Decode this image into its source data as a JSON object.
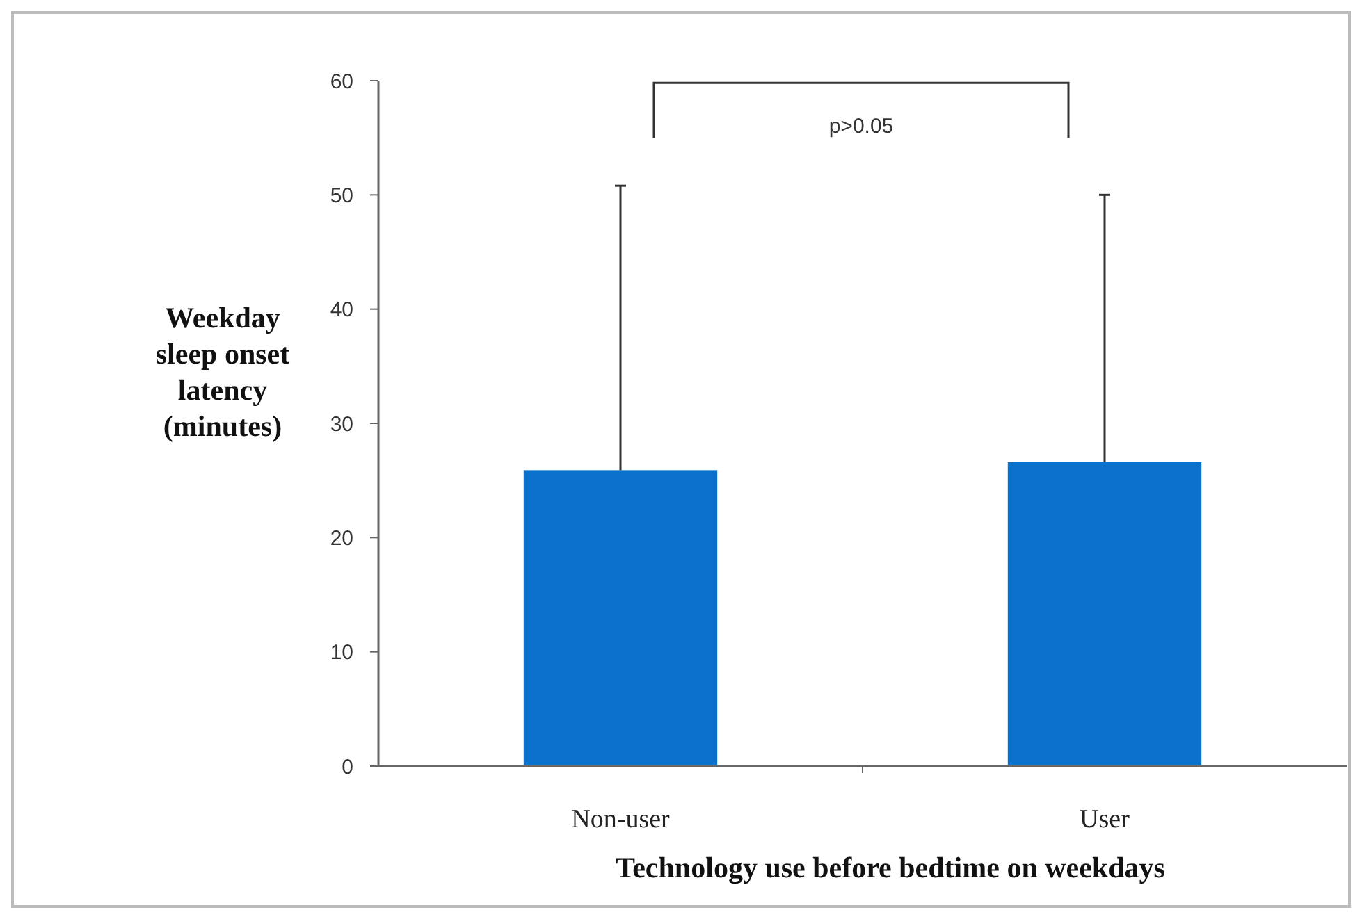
{
  "chart_data": {
    "type": "bar",
    "xlabel": "Technology use before bedtime on weekdays",
    "ylabel": "Weekday sleep onset latency (minutes)",
    "categories": [
      "Non-user",
      "User"
    ],
    "values": [
      25.9,
      26.6
    ],
    "errors": [
      [
        25.9,
        50.8
      ],
      [
        26.6,
        50
      ]
    ],
    "color": "#0a72cc",
    "ylim": [
      0,
      60
    ],
    "yticks": [
      0,
      10,
      20,
      30,
      40,
      50,
      60
    ],
    "grid": false,
    "annotations": [
      "p>0.05"
    ]
  }
}
